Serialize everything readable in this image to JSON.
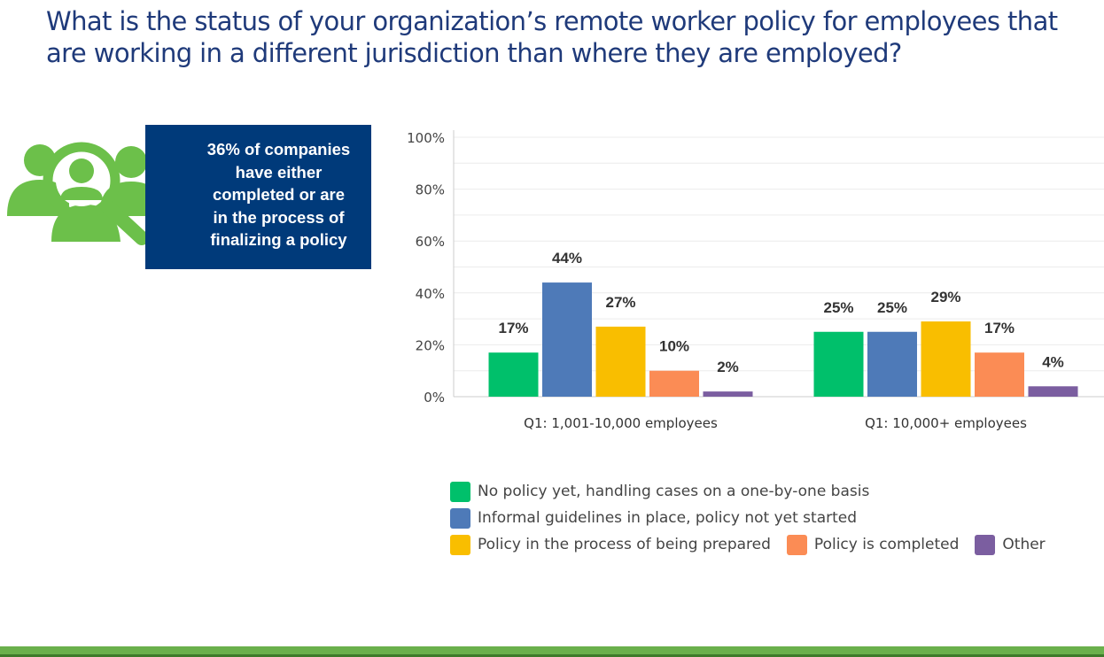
{
  "title": "What is the status of your organization’s remote worker policy for employees that are working in a different jurisdiction than where they are employed?",
  "callout": {
    "lines": [
      "36% of companies",
      "have either",
      "completed or are",
      "in the process of",
      "finalizing a policy"
    ],
    "icon": "people-magnifier-icon"
  },
  "colors": {
    "title": "#1f3a7a",
    "callout_bg": "#003a7a",
    "icon_green": "#6cc04a",
    "bottom_bar": "#6ab04c"
  },
  "chart_data": {
    "type": "bar",
    "categories": [
      "Q1: 1,001-10,000 employees",
      "Q1: 10,000+ employees"
    ],
    "series": [
      {
        "name": "No policy yet, handling cases on a one-by-one basis",
        "color": "#00c06b",
        "values": [
          17,
          25
        ]
      },
      {
        "name": "Informal guidelines in place, policy not yet started",
        "color": "#4e7ab8",
        "values": [
          44,
          25
        ]
      },
      {
        "name": "Policy in the process of being prepared",
        "color": "#f9be00",
        "values": [
          27,
          29
        ]
      },
      {
        "name": "Policy is completed",
        "color": "#fb8c55",
        "values": [
          10,
          17
        ]
      },
      {
        "name": "Other",
        "color": "#7b5ea0",
        "values": [
          2,
          4
        ]
      }
    ],
    "data_labels": [
      [
        "17%",
        "44%",
        "27%",
        "10%",
        "2%"
      ],
      [
        "25%",
        "25%",
        "29%",
        "17%",
        "4%"
      ]
    ],
    "yticks": [
      "0%",
      "20%",
      "40%",
      "60%",
      "80%",
      "100%"
    ],
    "ylim": [
      0,
      100
    ],
    "grid": true,
    "legend_position": "bottom"
  }
}
